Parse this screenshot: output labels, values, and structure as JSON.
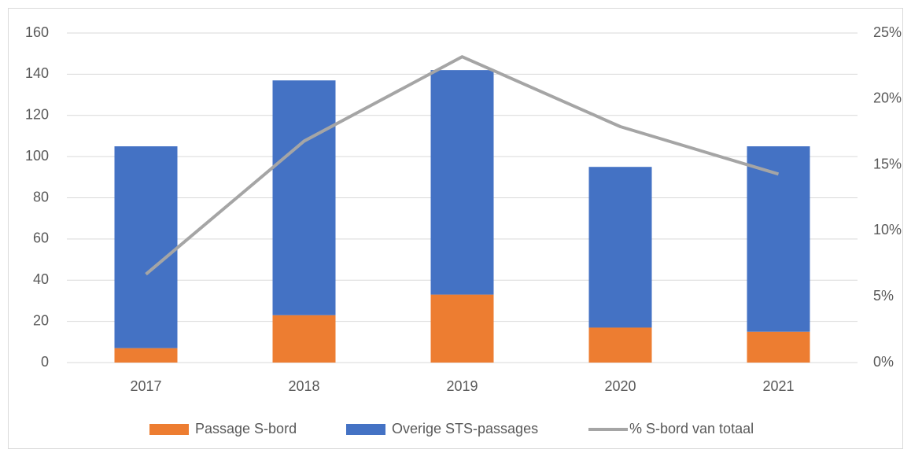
{
  "chart_data": {
    "type": "bar",
    "categories": [
      "2017",
      "2018",
      "2019",
      "2020",
      "2021"
    ],
    "series": [
      {
        "name": "Passage S-bord",
        "color": "#ed7d31",
        "values": [
          7,
          23,
          33,
          17,
          15
        ]
      },
      {
        "name": "Overige STS-passages",
        "color": "#4472c4",
        "values": [
          98,
          114,
          109,
          78,
          90
        ]
      },
      {
        "name": "% S-bord van totaal",
        "color": "#a5a5a5",
        "type": "line",
        "axis": "y2",
        "values": [
          6.7,
          16.8,
          23.2,
          17.9,
          14.3
        ]
      }
    ],
    "stacked": true,
    "ylim": [
      0,
      160
    ],
    "yticks": [
      0,
      20,
      40,
      60,
      80,
      100,
      120,
      140,
      160
    ],
    "y2lim": [
      0,
      25
    ],
    "y2ticks": [
      {
        "value": 0,
        "label": "0%"
      },
      {
        "value": 5,
        "label": "5%"
      },
      {
        "value": 10,
        "label": "10%"
      },
      {
        "value": 15,
        "label": "15%"
      },
      {
        "value": 20,
        "label": "20%"
      },
      {
        "value": 25,
        "label": "25%"
      }
    ],
    "grid": true,
    "legend": "bottom"
  }
}
